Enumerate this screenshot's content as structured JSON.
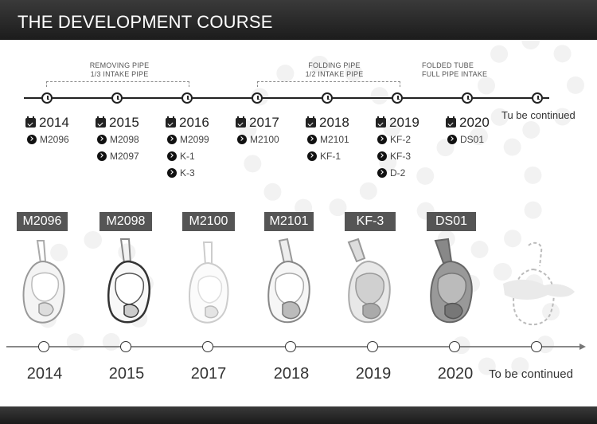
{
  "header": {
    "title": "THE DEVELOPMENT COURSE"
  },
  "annotations": [
    {
      "line1": "REMOVING PIPE",
      "line2": "1/3 INTAKE PIPE"
    },
    {
      "line1": "FOLDING PIPE",
      "line2": "1/2 INTAKE PIPE"
    },
    {
      "line1": "FOLDED TUBE",
      "line2": "FULL PIPE INTAKE"
    }
  ],
  "timeline_top": {
    "years": [
      {
        "year": "2014",
        "models": [
          "M2096"
        ]
      },
      {
        "year": "2015",
        "models": [
          "M2098",
          "M2097"
        ]
      },
      {
        "year": "2016",
        "models": [
          "M2099",
          "K-1",
          "K-3"
        ]
      },
      {
        "year": "2017",
        "models": [
          "M2100"
        ]
      },
      {
        "year": "2018",
        "models": [
          "M2101",
          "KF-1"
        ]
      },
      {
        "year": "2019",
        "models": [
          "KF-2",
          "KF-3",
          "D-2"
        ]
      },
      {
        "year": "2020",
        "models": [
          "DS01"
        ]
      }
    ],
    "continued": "Tu be continued"
  },
  "products": [
    {
      "label": "M2096",
      "year": "2014"
    },
    {
      "label": "M2098",
      "year": "2015"
    },
    {
      "label": "M2100",
      "year": "2017"
    },
    {
      "label": "M2101",
      "year": "2018"
    },
    {
      "label": "KF-3",
      "year": "2019"
    },
    {
      "label": "DS01",
      "year": "2020"
    }
  ],
  "timeline_bottom": {
    "continued": "To be continued"
  },
  "colors": {
    "bar": "#2a2a2a",
    "label_bg": "#555555",
    "accent_gray": "#8a8a8a"
  }
}
